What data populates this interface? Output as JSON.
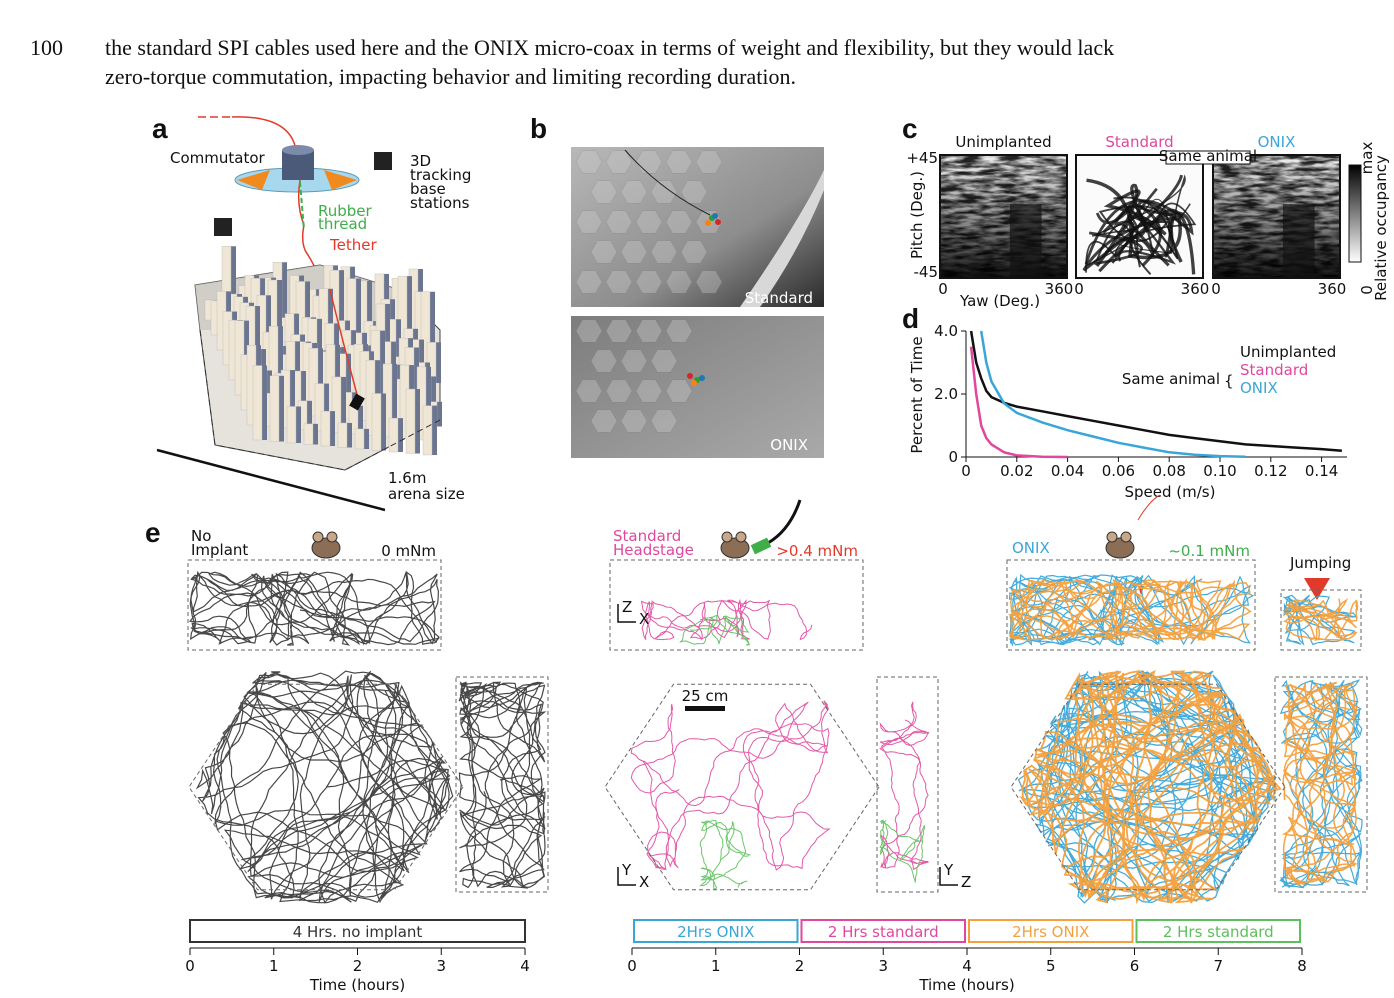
{
  "page_text": {
    "line_number": "100",
    "lines": [
      "the standard SPI cables used here and the ONIX micro-coax in terms of weight and flexibility, but they would lack",
      "zero-torque commutation, impacting behavior and limiting recording duration."
    ]
  },
  "panel_a": {
    "label": "a",
    "commutator": "Commutator",
    "base_stations": [
      "3D",
      "tracking",
      "base",
      "stations"
    ],
    "rubber_thread": [
      "Rubber",
      "thread"
    ],
    "tether": "Tether",
    "arena_size": [
      "1.6m",
      "arena size"
    ]
  },
  "panel_b": {
    "label": "b",
    "photos": [
      "Standard",
      "ONIX"
    ]
  },
  "panel_c": {
    "label": "c",
    "titles": [
      "Unimplanted",
      "Standard",
      "ONIX"
    ],
    "title_colors": [
      "#111111",
      "#e0479e",
      "#3aa6d8"
    ],
    "same_animal": "Same animal",
    "y_labels": [
      "+45",
      "-45"
    ],
    "y_title": "Pitch (Deg.)",
    "x_labels": [
      "0",
      "360"
    ],
    "x_title": "Yaw (Deg.)",
    "colorbar": {
      "max": "max",
      "min": "0",
      "title": "Relative occupancy"
    }
  },
  "chart_data": {
    "type": "line",
    "panel_label": "d",
    "ylabel": "Percent of Time",
    "xlabel": "Speed (m/s)",
    "x": [
      0.002,
      0.004,
      0.006,
      0.008,
      0.01,
      0.015,
      0.02,
      0.03,
      0.04,
      0.05,
      0.06,
      0.07,
      0.08,
      0.09,
      0.1,
      0.11,
      0.12,
      0.13,
      0.14,
      0.148
    ],
    "series": [
      {
        "name": "Unimplanted",
        "color": "#111111",
        "values": [
          4.0,
          3.0,
          2.5,
          2.1,
          1.9,
          1.72,
          1.6,
          1.45,
          1.3,
          1.15,
          1.0,
          0.85,
          0.7,
          0.6,
          0.5,
          0.4,
          0.35,
          0.3,
          0.25,
          0.2
        ]
      },
      {
        "name": "Standard",
        "color": "#e0479e",
        "values": [
          3.5,
          2.0,
          1.0,
          0.6,
          0.4,
          0.15,
          0.05,
          0.01,
          0,
          null,
          null,
          null,
          null,
          null,
          null,
          null,
          null,
          null,
          null,
          null
        ]
      },
      {
        "name": "ONIX",
        "color": "#3aa6d8",
        "values": [
          null,
          null,
          4.0,
          3.0,
          2.4,
          1.7,
          1.4,
          1.1,
          0.85,
          0.65,
          0.45,
          0.3,
          0.15,
          0.07,
          0.03,
          0.01,
          null,
          null,
          null,
          null
        ]
      }
    ],
    "legend_title": "Same animal",
    "xlim": [
      0,
      0.15
    ],
    "ylim": [
      0,
      4.0
    ],
    "xticks": [
      0,
      0.02,
      0.04,
      0.06,
      0.08,
      {
        "value": 0.1,
        "label": "0.10"
      },
      0.12,
      0.14
    ],
    "yticks": [
      0,
      {
        "value": 2,
        "label": "2.0"
      },
      {
        "value": 4,
        "label": "4.0"
      }
    ]
  },
  "panel_e": {
    "label": "e",
    "conditions": [
      {
        "name": [
          "No",
          "Implant"
        ],
        "torque": "0 mNm",
        "torque_color": "#111111",
        "colors": [
          "#333333"
        ]
      },
      {
        "name": [
          "Standard",
          "Headstage"
        ],
        "torque": ">0.4 mNm",
        "torque_color": "#e23a2a",
        "colors": [
          "#e0479e",
          "#5cc05c"
        ]
      },
      {
        "name": [
          "ONIX"
        ],
        "torque": "~0.1 mNm",
        "torque_color": "#3fae49",
        "colors": [
          "#3aa6d8",
          "#f4a03c"
        ]
      }
    ],
    "name_colors": [
      "#111111",
      "#e0479e",
      "#3aa6d8"
    ],
    "jumping": "Jumping",
    "scale_bar": "25 cm",
    "axes_labels": {
      "z": "Z",
      "x": "X",
      "y": "Y"
    },
    "timelines": [
      {
        "xlim": [
          0,
          4
        ],
        "ticks": [
          0,
          1,
          2,
          3,
          4
        ],
        "xlabel": "Time (hours)",
        "segments": [
          {
            "label": "4 Hrs. no implant",
            "color": "#333333",
            "start": 0,
            "end": 4
          }
        ]
      },
      {
        "xlim": [
          0,
          8
        ],
        "ticks": [
          0,
          1,
          2,
          3,
          4,
          5,
          6,
          7,
          8
        ],
        "xlabel": "Time (hours)",
        "segments": [
          {
            "label": "2Hrs ONIX",
            "color": "#3aa6d8",
            "start": 0,
            "end": 2
          },
          {
            "label": "2 Hrs standard",
            "color": "#e0479e",
            "start": 2,
            "end": 4
          },
          {
            "label": "2Hrs ONIX",
            "color": "#f4a03c",
            "start": 4,
            "end": 6
          },
          {
            "label": "2 Hrs standard",
            "color": "#5cc05c",
            "start": 6,
            "end": 8
          }
        ]
      }
    ]
  }
}
